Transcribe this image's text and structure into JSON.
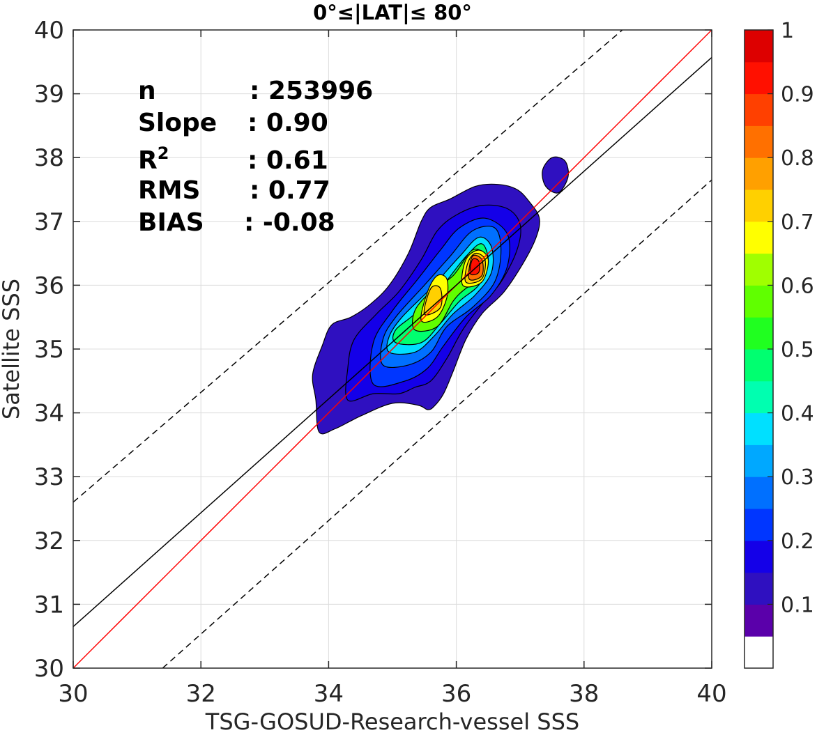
{
  "chart_data": {
    "type": "contour-density-scatter",
    "title": "0°≤|LAT|≤ 80°",
    "xlabel": "TSG-GOSUD-Research-vessel SSS",
    "ylabel": "Satellite SSS",
    "xlim": [
      30,
      40
    ],
    "ylim": [
      30,
      40
    ],
    "xticks": [
      30,
      32,
      34,
      36,
      38,
      40
    ],
    "yticks": [
      30,
      31,
      32,
      33,
      34,
      35,
      36,
      37,
      38,
      39,
      40
    ],
    "grid": true,
    "stats": [
      {
        "label": "n",
        "value": ": 253996"
      },
      {
        "label": "Slope",
        "value": ": 0.90"
      },
      {
        "label": "R",
        "sup": "2",
        "value": ": 0.61"
      },
      {
        "label": "RMS",
        "value": ": 0.77"
      },
      {
        "label": "BIAS",
        "value": ": -0.08"
      }
    ],
    "lines": [
      {
        "role": "one-to-one",
        "color": "#ff0000",
        "style": "solid",
        "x": [
          30,
          40
        ],
        "y": [
          30,
          40
        ]
      },
      {
        "role": "regression",
        "color": "#000000",
        "style": "solid",
        "x": [
          30,
          40
        ],
        "y": [
          30.65,
          39.57
        ]
      },
      {
        "role": "upper-bound",
        "color": "#000000",
        "style": "dashed",
        "x": [
          30,
          38.6
        ],
        "y": [
          32.6,
          40
        ]
      },
      {
        "role": "lower-bound",
        "color": "#000000",
        "style": "dashed",
        "x": [
          31.4,
          40
        ],
        "y": [
          30,
          37.65
        ]
      }
    ],
    "colorbar": {
      "ticks": [
        "0.1",
        "0.2",
        "0.3",
        "0.4",
        "0.5",
        "0.6",
        "0.7",
        "0.8",
        "0.9",
        "1"
      ],
      "tick_values": [
        0.1,
        0.2,
        0.3,
        0.4,
        0.5,
        0.6,
        0.7,
        0.8,
        0.9,
        1.0
      ],
      "levels": [
        0.05,
        0.1,
        0.15,
        0.2,
        0.25,
        0.3,
        0.35,
        0.4,
        0.45,
        0.5,
        0.55,
        0.6,
        0.65,
        0.7,
        0.75,
        0.8,
        0.85,
        0.9,
        0.95,
        1.0
      ],
      "colors": [
        "#ffffff",
        "#5a00aa",
        "#2f10c0",
        "#1400e8",
        "#0036ff",
        "#0070ff",
        "#00a8ff",
        "#00e0ff",
        "#00ffb0",
        "#00ff70",
        "#20ff20",
        "#60ff00",
        "#a0ff00",
        "#ffff00",
        "#ffd000",
        "#ffa000",
        "#ff7000",
        "#ff4000",
        "#ff1000",
        "#dd0000",
        "#900000"
      ]
    },
    "contours": [
      {
        "level": 0.1,
        "points": [
          [
            33.85,
            33.7
          ],
          [
            34.1,
            33.75
          ],
          [
            34.5,
            33.95
          ],
          [
            35.0,
            34.15
          ],
          [
            35.4,
            34.12
          ],
          [
            35.55,
            34.05
          ],
          [
            35.65,
            34.1
          ],
          [
            35.8,
            34.3
          ],
          [
            35.95,
            34.65
          ],
          [
            36.15,
            35.15
          ],
          [
            36.4,
            35.55
          ],
          [
            36.75,
            35.9
          ],
          [
            37.05,
            36.35
          ],
          [
            37.25,
            36.75
          ],
          [
            37.3,
            37.05
          ],
          [
            37.15,
            37.3
          ],
          [
            36.95,
            37.5
          ],
          [
            36.65,
            37.58
          ],
          [
            36.3,
            37.55
          ],
          [
            35.9,
            37.35
          ],
          [
            35.6,
            37.22
          ],
          [
            35.45,
            37.0
          ],
          [
            35.25,
            36.5
          ],
          [
            34.95,
            36.0
          ],
          [
            34.65,
            35.7
          ],
          [
            34.35,
            35.5
          ],
          [
            34.05,
            35.38
          ],
          [
            33.9,
            35.05
          ],
          [
            33.75,
            34.6
          ],
          [
            33.8,
            34.2
          ]
        ]
      },
      {
        "level": 0.1,
        "points": [
          [
            37.35,
            37.8
          ],
          [
            37.5,
            38.0
          ],
          [
            37.7,
            37.95
          ],
          [
            37.75,
            37.7
          ],
          [
            37.6,
            37.45
          ],
          [
            37.4,
            37.55
          ]
        ]
      },
      {
        "level": 0.15,
        "points": [
          [
            34.3,
            34.2
          ],
          [
            34.7,
            34.3
          ],
          [
            35.1,
            34.3
          ],
          [
            35.35,
            34.4
          ],
          [
            35.6,
            34.5
          ],
          [
            35.85,
            34.85
          ],
          [
            36.1,
            35.3
          ],
          [
            36.4,
            35.7
          ],
          [
            36.7,
            36.05
          ],
          [
            36.95,
            36.55
          ],
          [
            37.0,
            36.95
          ],
          [
            36.8,
            37.2
          ],
          [
            36.4,
            37.25
          ],
          [
            36.0,
            37.1
          ],
          [
            35.7,
            36.85
          ],
          [
            35.45,
            36.4
          ],
          [
            35.1,
            35.9
          ],
          [
            34.75,
            35.55
          ],
          [
            34.4,
            35.15
          ],
          [
            34.3,
            34.7
          ]
        ]
      },
      {
        "level": 0.2,
        "points": [
          [
            34.7,
            34.45
          ],
          [
            35.2,
            34.5
          ],
          [
            35.55,
            34.7
          ],
          [
            35.8,
            35.05
          ],
          [
            36.15,
            35.5
          ],
          [
            36.55,
            35.85
          ],
          [
            36.8,
            36.3
          ],
          [
            36.8,
            36.8
          ],
          [
            36.45,
            37.05
          ],
          [
            36.05,
            36.9
          ],
          [
            35.75,
            36.55
          ],
          [
            35.4,
            36.1
          ],
          [
            35.0,
            35.6
          ],
          [
            34.7,
            35.1
          ]
        ]
      },
      {
        "level": 0.25,
        "points": [
          [
            34.85,
            34.75
          ],
          [
            35.25,
            34.75
          ],
          [
            35.6,
            34.95
          ],
          [
            35.85,
            35.35
          ],
          [
            36.25,
            35.65
          ],
          [
            36.6,
            36.05
          ],
          [
            36.7,
            36.55
          ],
          [
            36.6,
            36.9
          ],
          [
            36.25,
            36.85
          ],
          [
            35.9,
            36.45
          ],
          [
            35.5,
            36.0
          ],
          [
            35.05,
            35.5
          ],
          [
            34.85,
            35.15
          ]
        ]
      },
      {
        "level": 0.35,
        "points": [
          [
            34.95,
            34.95
          ],
          [
            35.35,
            34.95
          ],
          [
            35.65,
            35.2
          ],
          [
            35.95,
            35.55
          ],
          [
            36.3,
            35.85
          ],
          [
            36.55,
            36.2
          ],
          [
            36.55,
            36.6
          ],
          [
            36.35,
            36.75
          ],
          [
            36.05,
            36.45
          ],
          [
            35.6,
            35.95
          ],
          [
            35.15,
            35.5
          ],
          [
            34.95,
            35.2
          ]
        ]
      },
      {
        "level": 0.45,
        "points": [
          [
            35.05,
            35.1
          ],
          [
            35.45,
            35.1
          ],
          [
            35.75,
            35.4
          ],
          [
            36.05,
            35.75
          ],
          [
            36.35,
            36.0
          ],
          [
            36.5,
            36.35
          ],
          [
            36.4,
            36.65
          ],
          [
            36.15,
            36.45
          ],
          [
            35.75,
            35.95
          ],
          [
            35.35,
            35.55
          ],
          [
            35.05,
            35.3
          ]
        ]
      },
      {
        "level": 0.55,
        "points": [
          [
            35.35,
            35.3
          ],
          [
            35.7,
            35.35
          ],
          [
            35.95,
            35.75
          ],
          [
            36.15,
            35.95
          ],
          [
            36.4,
            36.1
          ],
          [
            36.45,
            36.45
          ],
          [
            36.25,
            36.55
          ],
          [
            35.95,
            36.15
          ],
          [
            35.6,
            35.9
          ],
          [
            35.35,
            35.6
          ]
        ]
      },
      {
        "level": 0.65,
        "points": [
          [
            35.45,
            35.45
          ],
          [
            35.7,
            35.5
          ],
          [
            35.85,
            35.8
          ],
          [
            35.85,
            36.1
          ],
          [
            35.7,
            36.15
          ],
          [
            35.55,
            35.9
          ]
        ]
      },
      {
        "level": 0.65,
        "points": [
          [
            36.1,
            36.0
          ],
          [
            36.4,
            36.05
          ],
          [
            36.5,
            36.4
          ],
          [
            36.35,
            36.55
          ],
          [
            36.15,
            36.4
          ]
        ]
      },
      {
        "level": 0.7,
        "points": [
          [
            35.5,
            35.55
          ],
          [
            35.75,
            35.65
          ],
          [
            35.75,
            35.95
          ],
          [
            35.6,
            35.95
          ]
        ]
      },
      {
        "level": 0.7,
        "points": [
          [
            36.15,
            36.05
          ],
          [
            36.4,
            36.1
          ],
          [
            36.45,
            36.4
          ],
          [
            36.3,
            36.5
          ],
          [
            36.18,
            36.35
          ]
        ]
      },
      {
        "level": 0.8,
        "points": [
          [
            36.2,
            36.1
          ],
          [
            36.4,
            36.15
          ],
          [
            36.4,
            36.4
          ],
          [
            36.25,
            36.45
          ]
        ]
      },
      {
        "level": 0.9,
        "points": [
          [
            36.22,
            36.18
          ],
          [
            36.35,
            36.2
          ],
          [
            36.35,
            36.38
          ],
          [
            36.25,
            36.4
          ]
        ]
      }
    ]
  }
}
